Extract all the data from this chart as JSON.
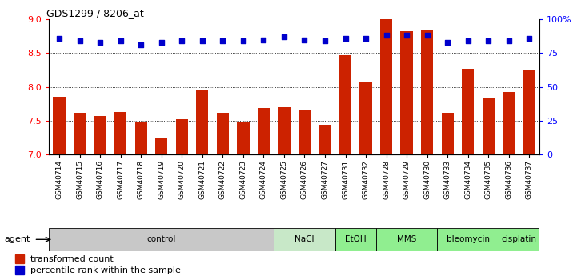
{
  "title": "GDS1299 / 8206_at",
  "categories": [
    "GSM40714",
    "GSM40715",
    "GSM40716",
    "GSM40717",
    "GSM40718",
    "GSM40719",
    "GSM40720",
    "GSM40721",
    "GSM40722",
    "GSM40723",
    "GSM40724",
    "GSM40725",
    "GSM40726",
    "GSM40727",
    "GSM40731",
    "GSM40732",
    "GSM40728",
    "GSM40729",
    "GSM40730",
    "GSM40733",
    "GSM40734",
    "GSM40735",
    "GSM40736",
    "GSM40737"
  ],
  "bar_values": [
    7.85,
    7.62,
    7.57,
    7.63,
    7.47,
    7.25,
    7.52,
    7.95,
    7.62,
    7.48,
    7.69,
    7.7,
    7.67,
    7.44,
    8.47,
    8.08,
    9.0,
    8.83,
    8.85,
    7.62,
    8.27,
    7.83,
    7.93,
    8.25
  ],
  "dot_values": [
    86,
    84,
    83,
    84,
    81,
    83,
    84,
    84,
    84,
    84,
    85,
    87,
    85,
    84,
    86,
    86,
    88,
    88,
    88,
    83,
    84,
    84,
    84,
    86
  ],
  "agent_groups": [
    {
      "label": "control",
      "start": 0,
      "end": 10,
      "color": "#c8c8c8"
    },
    {
      "label": "NaCl",
      "start": 11,
      "end": 13,
      "color": "#c8e8c8"
    },
    {
      "label": "EtOH",
      "start": 14,
      "end": 15,
      "color": "#90ee90"
    },
    {
      "label": "MMS",
      "start": 16,
      "end": 18,
      "color": "#90ee90"
    },
    {
      "label": "bleomycin",
      "start": 19,
      "end": 21,
      "color": "#90ee90"
    },
    {
      "label": "cisplatin",
      "start": 22,
      "end": 23,
      "color": "#90ee90"
    }
  ],
  "ylim_left": [
    7.0,
    9.0
  ],
  "ylim_right": [
    0,
    100
  ],
  "yticks_left": [
    7.0,
    7.5,
    8.0,
    8.5,
    9.0
  ],
  "yticks_right": [
    0,
    25,
    50,
    75,
    100
  ],
  "ytick_labels_right": [
    "0",
    "25",
    "50",
    "75",
    "100%"
  ],
  "bar_color": "#cc2200",
  "dot_color": "#0000cc",
  "bar_width": 0.6,
  "legend_bar_label": "transformed count",
  "legend_dot_label": "percentile rank within the sample",
  "agent_label": "agent",
  "figsize": [
    7.21,
    3.45
  ],
  "dpi": 100,
  "hgrid_lines": [
    7.5,
    8.0,
    8.5
  ]
}
